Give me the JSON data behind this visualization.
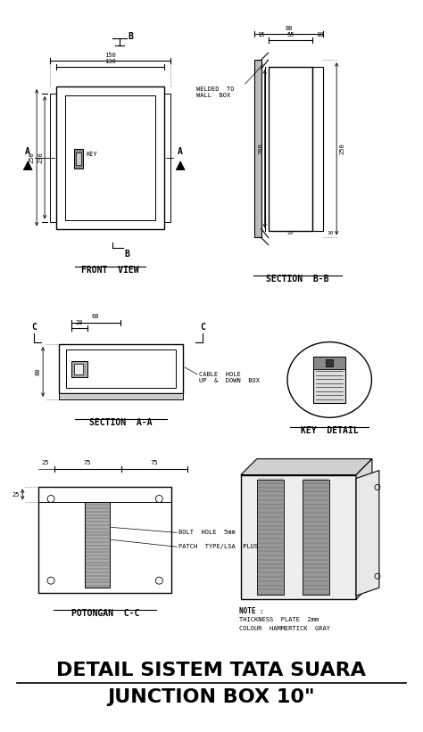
{
  "bg_color": "#ffffff",
  "line_color": "#000000",
  "title1": "DETAIL SISTEM TATA SUARA",
  "title2": "JUNCTION BOX 10\"",
  "label_front": "FRONT  VIEW",
  "label_sectionBB": "SECTION  B-B",
  "label_sectionAA": "SECTION  A-A",
  "label_key": "KEY  DETAIL",
  "label_potongan": "POTONGAN  C-C",
  "note_line1": "NOTE :",
  "note_line2": "THICKNESS  PLATE  2mm",
  "note_line3": "COLOUR  HAMMERTICK  GRAY",
  "text_key": "KEY",
  "text_cable_hole": "CABLE  HOLE\nUP  &  DOWN  BOX",
  "text_bolt_hole": "BOLT  HOLE  5mm",
  "text_patch": "PATCH  TYPE/LSA  PLUS",
  "text_welded": "WELDED  TO\nWALL  BOX"
}
